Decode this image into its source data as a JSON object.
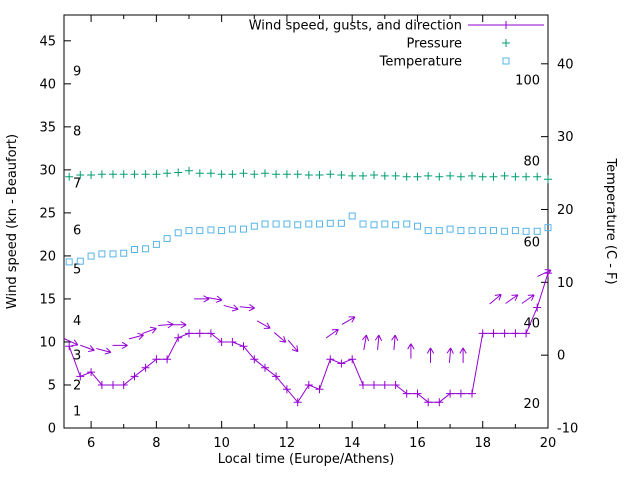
{
  "chart_data": {
    "type": "line",
    "title": "",
    "xlabel": "Local time (Europe/Athens)",
    "ylabel_left": "Wind speed (kn - Beaufort)",
    "ylabel_right": "Temperature (C - F)",
    "x_range": [
      5.17,
      20
    ],
    "y_left_range": [
      0,
      48
    ],
    "y_right_range": [
      -10,
      46.7
    ],
    "x_ticks": [
      6,
      8,
      10,
      12,
      14,
      16,
      18,
      20
    ],
    "x_minor_ticks": [
      7,
      9,
      11,
      13,
      15,
      17,
      19
    ],
    "y_left_ticks": [
      0,
      5,
      10,
      15,
      20,
      25,
      30,
      35,
      40,
      45
    ],
    "y_right_ticks": [
      -10,
      0,
      10,
      20,
      30,
      40
    ],
    "beaufort_labels": [
      {
        "label": "1",
        "kn": 2
      },
      {
        "label": "2",
        "kn": 5
      },
      {
        "label": "3",
        "kn": 8.5
      },
      {
        "label": "4",
        "kn": 12.5
      },
      {
        "label": "5",
        "kn": 18.5
      },
      {
        "label": "6",
        "kn": 23
      },
      {
        "label": "7",
        "kn": 28.5
      },
      {
        "label": "8",
        "kn": 34.5
      },
      {
        "label": "9",
        "kn": 41.5
      }
    ],
    "fahrenheit_labels": [
      "20",
      "40",
      "60",
      "80",
      "100"
    ],
    "fahrenheit_values": [
      20,
      40,
      60,
      80,
      100
    ],
    "legend": [
      {
        "label": "Wind speed, gusts, and direction",
        "series": "wind",
        "color": "#9400d3",
        "marker": "line-plus"
      },
      {
        "label": "Pressure",
        "series": "pressure",
        "color": "#009e73",
        "marker": "plus"
      },
      {
        "label": "Temperature",
        "series": "temperature",
        "color": "#56b4e9",
        "marker": "square"
      }
    ],
    "x": [
      5.33,
      5.67,
      6,
      6.33,
      6.67,
      7,
      7.33,
      7.67,
      8,
      8.33,
      8.67,
      9,
      9.33,
      9.67,
      10,
      10.33,
      10.67,
      11,
      11.33,
      11.67,
      12,
      12.33,
      12.67,
      13,
      13.33,
      13.67,
      14,
      14.33,
      14.67,
      15,
      15.33,
      15.67,
      16,
      16.33,
      16.67,
      17,
      17.33,
      17.67,
      18,
      18.33,
      18.67,
      19,
      19.33,
      19.67,
      20
    ],
    "series": {
      "wind_kn": [
        9.5,
        6,
        6.5,
        5,
        5,
        5,
        6,
        7,
        8,
        8,
        10.5,
        11,
        11,
        11,
        10,
        10,
        9.5,
        8,
        7,
        6,
        4.5,
        3,
        5,
        4.5,
        8,
        7.5,
        8,
        5,
        5,
        5,
        5,
        4,
        4,
        3,
        3,
        4,
        4,
        4,
        11,
        11,
        11,
        11,
        11,
        14,
        18
      ],
      "pressure": [
        29.2,
        29.4,
        29.4,
        29.5,
        29.5,
        29.5,
        29.5,
        29.5,
        29.5,
        29.6,
        29.7,
        29.9,
        29.6,
        29.6,
        29.5,
        29.5,
        29.6,
        29.5,
        29.6,
        29.5,
        29.5,
        29.5,
        29.4,
        29.4,
        29.5,
        29.4,
        29.3,
        29.3,
        29.4,
        29.3,
        29.3,
        29.2,
        29.2,
        29.3,
        29.2,
        29.3,
        29.2,
        29.3,
        29.2,
        29.2,
        29.3,
        29.2,
        29.2,
        29.2,
        28.9
      ],
      "temperature_c": [
        12.8,
        12.9,
        13.6,
        13.9,
        13.9,
        14,
        14.5,
        14.6,
        15.2,
        16,
        16.8,
        17.1,
        17.1,
        17.2,
        17.1,
        17.3,
        17.3,
        17.7,
        18,
        18,
        18,
        17.9,
        18,
        18,
        18.1,
        18.1,
        19.1,
        18,
        17.9,
        18,
        17.9,
        18,
        17.7,
        17.1,
        17.1,
        17.3,
        17.1,
        17.1,
        17.1,
        17.1,
        17,
        17.1,
        17,
        17,
        17.5
      ]
    },
    "wind_arrows": [
      {
        "x": 5.4,
        "kn": 10,
        "angle": -25
      },
      {
        "x": 5.9,
        "kn": 9.3,
        "angle": -20
      },
      {
        "x": 6.4,
        "kn": 9,
        "angle": -15
      },
      {
        "x": 6.9,
        "kn": 9.6,
        "angle": 0
      },
      {
        "x": 7.4,
        "kn": 10.6,
        "angle": 15
      },
      {
        "x": 7.8,
        "kn": 11.3,
        "angle": 20
      },
      {
        "x": 8.3,
        "kn": 12,
        "angle": 5
      },
      {
        "x": 8.7,
        "kn": 12,
        "angle": 0
      },
      {
        "x": 9.4,
        "kn": 15,
        "angle": 0
      },
      {
        "x": 9.8,
        "kn": 15,
        "angle": -10
      },
      {
        "x": 10.3,
        "kn": 14,
        "angle": -15
      },
      {
        "x": 10.8,
        "kn": 14,
        "angle": -5
      },
      {
        "x": 11.3,
        "kn": 12,
        "angle": -30
      },
      {
        "x": 11.8,
        "kn": 10.5,
        "angle": -40
      },
      {
        "x": 12.2,
        "kn": 9.5,
        "angle": -50
      },
      {
        "x": 13.4,
        "kn": 11,
        "angle": 35
      },
      {
        "x": 13.9,
        "kn": 12.5,
        "angle": 30
      },
      {
        "x": 14.4,
        "kn": 10,
        "angle": 80
      },
      {
        "x": 14.8,
        "kn": 10,
        "angle": 85
      },
      {
        "x": 15.3,
        "kn": 10,
        "angle": 85
      },
      {
        "x": 15.8,
        "kn": 9,
        "angle": 90
      },
      {
        "x": 16.4,
        "kn": 8.5,
        "angle": 90
      },
      {
        "x": 17,
        "kn": 8.5,
        "angle": 85
      },
      {
        "x": 17.4,
        "kn": 8.5,
        "angle": 90
      },
      {
        "x": 18.4,
        "kn": 15,
        "angle": 40
      },
      {
        "x": 18.9,
        "kn": 15,
        "angle": 35
      },
      {
        "x": 19.4,
        "kn": 15,
        "angle": 35
      },
      {
        "x": 19.9,
        "kn": 18,
        "angle": 25
      }
    ],
    "colors": {
      "axis": "#000000",
      "background": "#ffffff",
      "wind": "#9400d3",
      "pressure": "#009e73",
      "temperature": "#56b4e9"
    }
  }
}
